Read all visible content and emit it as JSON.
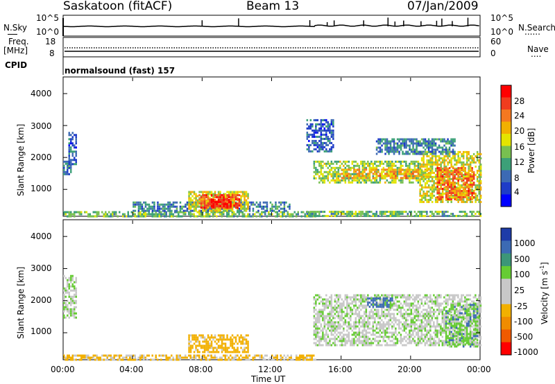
{
  "header": {
    "station": "Saskatoon (fitACF)",
    "beam": "Beam 13",
    "date": "07/Jan/2009"
  },
  "strip_nsky": {
    "left_label": "N.Sky",
    "left_ticks": [
      "10^5",
      "10^0"
    ],
    "right_ticks": [
      "10^5",
      "10^0"
    ],
    "right_label": "N.Search",
    "right_marker": "......"
  },
  "strip_freq": {
    "left_label_1": "Freq.",
    "left_label_2": "[MHz]",
    "left_ticks": [
      "18",
      "8"
    ],
    "right_ticks": [
      "60",
      "0"
    ],
    "right_label": "Nave",
    "right_marker": "...."
  },
  "cpid": {
    "label": "CPID",
    "program": "normalsound (fast) 157"
  },
  "axes": {
    "xlabel": "Time UT",
    "x_ticks": [
      "00:00",
      "04:00",
      "08:00",
      "12:00",
      "16:00",
      "20:00",
      "00:00"
    ],
    "ylabel": "Slant Range [km]",
    "y_ticks": [
      "4000",
      "3000",
      "2000",
      "1000"
    ]
  },
  "colorbars": {
    "power": {
      "label": "Power [dB]",
      "ticks": [
        "28",
        "24",
        "20",
        "16",
        "12",
        "8",
        "4"
      ],
      "colors": [
        "#ff0000",
        "#f03c1e",
        "#f57820",
        "#f2b000",
        "#e4e400",
        "#78c050",
        "#3ca078",
        "#3c6ab4",
        "#1e3cc8",
        "#0000ff"
      ]
    },
    "velocity": {
      "label": "Velocity [m s",
      "label_sup": "-1",
      "label_end": "]",
      "ticks": [
        "1000",
        "500",
        "100",
        "25",
        "-25",
        "-100",
        "-500",
        "-1000"
      ],
      "colors": [
        "#1e3ca8",
        "#3c6ab4",
        "#3c9678",
        "#66cc33",
        "#c8c8c8",
        "#c8c8c8",
        "#f2b000",
        "#f08c00",
        "#f05a00",
        "#ff0000"
      ]
    }
  },
  "chart_data": [
    {
      "type": "line",
      "title": "N.Sky / N.Search",
      "x_range_hours": [
        0,
        24
      ],
      "description_series": [
        {
          "name": "N.Sky",
          "baseline": "approx 10^3",
          "spikes_hours": [
            8.0,
            10.1,
            14.2,
            15.2,
            15.6,
            17.3,
            18.7,
            19.1,
            19.6,
            20.6,
            21.5,
            21.8,
            22.4,
            23.3
          ]
        }
      ]
    },
    {
      "type": "line",
      "title": "Freq / Nave",
      "series": [
        {
          "name": "Freq",
          "unit": "MHz",
          "value": 10.5
        },
        {
          "name": "Nave",
          "value": 23
        }
      ]
    },
    {
      "type": "heatmap",
      "title": "Power [dB]",
      "xlabel": "Time UT",
      "ylabel": "Slant Range [km]",
      "x_range_hours": [
        0,
        24
      ],
      "ylim_km": [
        180,
        4500
      ],
      "colorbar_range": [
        0,
        30
      ],
      "regions": [
        {
          "t0": 0.0,
          "t1": 0.4,
          "r0": 1500,
          "r1": 1900,
          "power": 10
        },
        {
          "t0": 0.3,
          "t1": 0.7,
          "r0": 1800,
          "r1": 2800,
          "power": 8
        },
        {
          "t0": 0.0,
          "t1": 14.5,
          "r0": 180,
          "r1": 320,
          "power": 14
        },
        {
          "t0": 4.0,
          "t1": 13.0,
          "r0": 320,
          "r1": 620,
          "power": 10
        },
        {
          "t0": 7.2,
          "t1": 10.6,
          "r0": 320,
          "r1": 950,
          "power": 18
        },
        {
          "t0": 7.8,
          "t1": 10.1,
          "r0": 400,
          "r1": 850,
          "power": 26
        },
        {
          "t0": 8.4,
          "t1": 9.6,
          "r0": 480,
          "r1": 700,
          "power": 29
        },
        {
          "t0": 14.0,
          "t1": 24.0,
          "r0": 180,
          "r1": 330,
          "power": 14
        },
        {
          "t0": 14.4,
          "t1": 20.5,
          "r0": 1200,
          "r1": 1900,
          "power": 16
        },
        {
          "t0": 16.0,
          "t1": 21.0,
          "r0": 1350,
          "r1": 1650,
          "power": 22
        },
        {
          "t0": 20.5,
          "t1": 24.0,
          "r0": 600,
          "r1": 2200,
          "power": 18
        },
        {
          "t0": 21.5,
          "t1": 23.6,
          "r0": 700,
          "r1": 1700,
          "power": 25
        },
        {
          "t0": 14.0,
          "t1": 15.5,
          "r0": 2200,
          "r1": 3200,
          "power": 8
        },
        {
          "t0": 18.0,
          "t1": 22.5,
          "r0": 2100,
          "r1": 2600,
          "power": 10
        }
      ]
    },
    {
      "type": "heatmap",
      "title": "Velocity [m s-1]",
      "xlabel": "Time UT",
      "ylabel": "Slant Range [km]",
      "x_range_hours": [
        0,
        24
      ],
      "ylim_km": [
        180,
        4500
      ],
      "colorbar_range": [
        -1000,
        1000
      ],
      "regions": [
        {
          "t0": 0.0,
          "t1": 0.7,
          "r0": 1500,
          "r1": 2800,
          "velocity": 0
        },
        {
          "t0": 0.0,
          "t1": 14.5,
          "r0": 180,
          "r1": 320,
          "velocity": -120
        },
        {
          "t0": 7.2,
          "t1": 10.6,
          "r0": 400,
          "r1": 950,
          "velocity": -150
        },
        {
          "t0": 14.4,
          "t1": 24.0,
          "r0": 600,
          "r1": 2200,
          "velocity": 0
        },
        {
          "t0": 17.5,
          "t1": 19.0,
          "r0": 1800,
          "r1": 2100,
          "velocity": 150
        },
        {
          "t0": 22.0,
          "t1": 23.8,
          "r0": 600,
          "r1": 1900,
          "velocity": 60
        }
      ]
    }
  ]
}
